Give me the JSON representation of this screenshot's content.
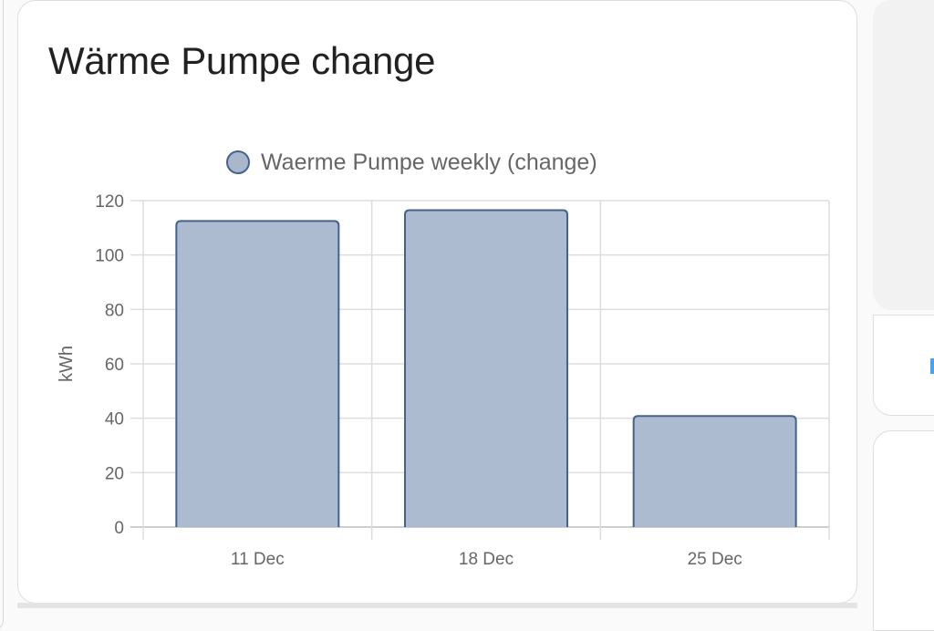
{
  "card": {
    "title": "Wärme Pumpe change"
  },
  "legend": {
    "label": "Waerme Pumpe weekly (change)",
    "swatch_fill": "#a8b7cc",
    "swatch_border": "#44628f"
  },
  "chart_data": {
    "type": "bar",
    "title": "Wärme Pumpe change",
    "categories": [
      "11 Dec",
      "18 Dec",
      "25 Dec"
    ],
    "series": [
      {
        "name": "Waerme Pumpe weekly (change)",
        "values": [
          112.5,
          116.5,
          40.8
        ]
      }
    ],
    "xlabel": "",
    "ylabel": "kWh",
    "ylim": [
      0,
      120
    ],
    "yticks": [
      0,
      20,
      40,
      60,
      80,
      100,
      120
    ],
    "grid": true,
    "legend_position": "top",
    "colors": {
      "bar_fill": "#a8b7cc",
      "bar_border": "#44628f",
      "grid": "#dddddd",
      "tick_text": "#666666"
    }
  }
}
